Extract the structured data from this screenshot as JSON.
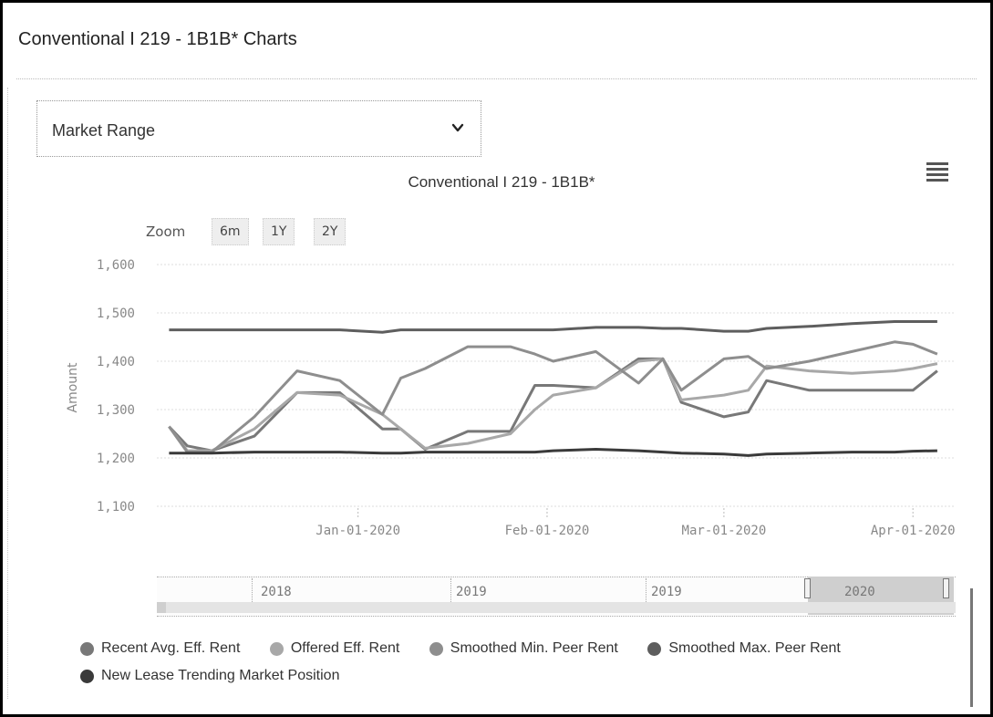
{
  "panel": {
    "title": "Conventional I 219 - 1B1B* Charts"
  },
  "dropdown": {
    "selected": "Market Range",
    "icon": "chevron-down-icon"
  },
  "zoom": {
    "label": "Zoom",
    "buttons": [
      "6m",
      "1Y",
      "2Y"
    ]
  },
  "navigator": {
    "labels": [
      "2018",
      "2019",
      "2019",
      "2020"
    ]
  },
  "colors": {
    "recent_avg": "#787878",
    "offered": "#a8a8a8",
    "smoothed_min": "#8e8e8e",
    "smoothed_max": "#5e5e5e",
    "new_lease": "#3a3a3a"
  },
  "chart_data": {
    "type": "line",
    "title": "Conventional I 219 - 1B1B*",
    "xlabel": "",
    "ylabel": "Amount",
    "ylim": [
      1100,
      1600
    ],
    "y_ticks": [
      "1,100",
      "1,200",
      "1,300",
      "1,400",
      "1,500",
      "1,600"
    ],
    "x_ticks": [
      "Jan-01-2020",
      "Feb-01-2020",
      "Mar-01-2020",
      "Apr-01-2020"
    ],
    "grid": true,
    "legend_position": "bottom",
    "x": [
      "2019-12-01",
      "2019-12-04",
      "2019-12-08",
      "2019-12-15",
      "2019-12-22",
      "2019-12-29",
      "2020-01-05",
      "2020-01-08",
      "2020-01-12",
      "2020-01-19",
      "2020-01-26",
      "2020-01-30",
      "2020-02-02",
      "2020-02-09",
      "2020-02-16",
      "2020-02-20",
      "2020-02-23",
      "2020-03-01",
      "2020-03-05",
      "2020-03-08",
      "2020-03-15",
      "2020-03-22",
      "2020-03-29",
      "2020-04-01",
      "2020-04-05"
    ],
    "series": [
      {
        "name": "Recent Avg. Eff. Rent",
        "color_key": "recent_avg",
        "values": [
          1265,
          1225,
          1215,
          1245,
          1335,
          1335,
          1260,
          1260,
          1218,
          1255,
          1255,
          1350,
          1350,
          1345,
          1405,
          1405,
          1315,
          1285,
          1295,
          1360,
          1340,
          1340,
          1340,
          1340,
          1380
        ]
      },
      {
        "name": "Offered Eff. Rent",
        "color_key": "offered",
        "values": [
          1265,
          1215,
          1215,
          1260,
          1335,
          1330,
          1290,
          1260,
          1220,
          1230,
          1250,
          1300,
          1330,
          1345,
          1400,
          1405,
          1320,
          1330,
          1340,
          1390,
          1380,
          1375,
          1380,
          1385,
          1395
        ]
      },
      {
        "name": "Smoothed Min. Peer Rent",
        "color_key": "smoothed_min",
        "values": [
          1265,
          1212,
          1212,
          1285,
          1380,
          1360,
          1290,
          1365,
          1385,
          1430,
          1430,
          1415,
          1400,
          1420,
          1355,
          1405,
          1340,
          1405,
          1410,
          1385,
          1400,
          1420,
          1440,
          1435,
          1415
        ]
      },
      {
        "name": "Smoothed Max. Peer Rent",
        "color_key": "smoothed_max",
        "values": [
          1465,
          1465,
          1465,
          1465,
          1465,
          1465,
          1460,
          1465,
          1465,
          1465,
          1465,
          1465,
          1465,
          1470,
          1470,
          1468,
          1468,
          1462,
          1462,
          1468,
          1472,
          1478,
          1482,
          1482,
          1482
        ]
      },
      {
        "name": "New Lease Trending Market Position",
        "color_key": "new_lease",
        "values": [
          1210,
          1210,
          1210,
          1212,
          1212,
          1212,
          1210,
          1210,
          1212,
          1212,
          1212,
          1212,
          1215,
          1218,
          1215,
          1212,
          1210,
          1208,
          1205,
          1208,
          1210,
          1212,
          1212,
          1214,
          1215
        ]
      }
    ]
  }
}
